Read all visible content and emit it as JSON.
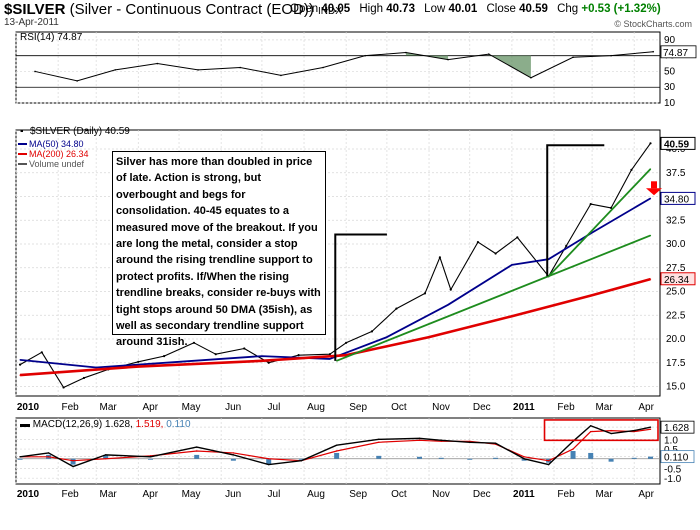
{
  "header": {
    "symbol": "$SILVER",
    "description": "(Silver - Continuous Contract (EOD))",
    "exchange": "INDX",
    "date": "13-Apr-2011",
    "brand": "© StockCharts.com",
    "open_label": "Open",
    "open": "40.05",
    "high_label": "High",
    "high": "40.73",
    "low_label": "Low",
    "low": "40.01",
    "close_label": "Close",
    "close": "40.59",
    "chg_label": "Chg",
    "chg": "+0.53 (+1.32%)"
  },
  "colors": {
    "price": "#000000",
    "ma50": "#00008b",
    "ma200": "#e00000",
    "trend": "#1e8c1e",
    "annotation_box": "#000000",
    "arrow": "#ff0000",
    "macd": "#000000",
    "signal": "#e00000",
    "histogram": "#4682b4",
    "rsi_fill": "#5a8a5a",
    "grid": "#d8d8d8"
  },
  "chart_data": [
    {
      "type": "line",
      "panel": "rsi",
      "legend": "RSI(14) 74.87",
      "last_value": "74.87",
      "ylim": [
        10,
        100
      ],
      "ticks": [
        "90",
        "70",
        "50",
        "30",
        "10"
      ],
      "overbought": 70,
      "oversold": 30,
      "x": [
        "2010-01",
        "2010-02",
        "2010-03",
        "2010-04",
        "2010-05",
        "2010-06",
        "2010-07",
        "2010-08",
        "2010-09",
        "2010-10",
        "2010-11",
        "2010-12",
        "2011-01",
        "2011-02",
        "2011-03",
        "2011-04"
      ],
      "values": [
        50,
        38,
        52,
        60,
        52,
        55,
        45,
        55,
        70,
        74,
        65,
        72,
        42,
        68,
        70,
        75
      ]
    },
    {
      "type": "line",
      "panel": "price",
      "legend_title": "$SILVER (Daily) 40.59",
      "legend": [
        {
          "label": "MA(50) 34.80",
          "color": "#00008b"
        },
        {
          "label": "MA(200) 26.34",
          "color": "#e00000"
        },
        {
          "label": "Volume undef",
          "color": "#555555"
        }
      ],
      "ylim": [
        14,
        42
      ],
      "ticks": [
        "40.0",
        "37.5",
        "35.0",
        "32.5",
        "30.0",
        "27.5",
        "25.0",
        "22.5",
        "20.0",
        "17.5",
        "15.0"
      ],
      "value_tags": [
        "40.59",
        "34.80",
        "26.34"
      ],
      "x_labels": [
        "2010",
        "Feb",
        "Mar",
        "Apr",
        "May",
        "Jun",
        "Jul",
        "Aug",
        "Sep",
        "Oct",
        "Nov",
        "Dec",
        "2011",
        "Feb",
        "Mar",
        "Apr"
      ],
      "series": [
        {
          "name": "$SILVER",
          "x": [
            "2010-01-04",
            "2010-01-20",
            "2010-02-05",
            "2010-02-20",
            "2010-03-10",
            "2010-04-01",
            "2010-04-20",
            "2010-05-12",
            "2010-05-28",
            "2010-06-18",
            "2010-07-06",
            "2010-07-28",
            "2010-08-20",
            "2010-09-01",
            "2010-09-20",
            "2010-10-08",
            "2010-10-29",
            "2010-11-09",
            "2010-11-17",
            "2010-12-07",
            "2010-12-20",
            "2011-01-05",
            "2011-01-28",
            "2011-02-10",
            "2011-02-28",
            "2011-03-15",
            "2011-03-30",
            "2011-04-13"
          ],
          "values": [
            17.3,
            18.6,
            14.9,
            15.9,
            16.8,
            17.6,
            18.2,
            19.6,
            18.4,
            19.0,
            17.5,
            18.3,
            18.4,
            19.6,
            20.8,
            23.2,
            24.8,
            28.6,
            25.2,
            30.2,
            29.0,
            30.7,
            26.6,
            29.8,
            34.2,
            33.8,
            37.8,
            40.6
          ]
        },
        {
          "name": "MA(50)",
          "x": [
            "2010-01-04",
            "2010-03-01",
            "2010-05-01",
            "2010-07-01",
            "2010-08-20",
            "2010-10-01",
            "2010-11-15",
            "2011-01-01",
            "2011-01-28",
            "2011-03-01",
            "2011-04-13"
          ],
          "values": [
            17.8,
            17.0,
            17.6,
            18.2,
            17.9,
            20.2,
            23.6,
            27.8,
            28.4,
            31.2,
            34.8
          ]
        },
        {
          "name": "MA(200)",
          "x": [
            "2010-01-04",
            "2010-04-01",
            "2010-07-01",
            "2010-09-01",
            "2010-11-01",
            "2011-01-01",
            "2011-03-01",
            "2011-04-13"
          ],
          "values": [
            16.2,
            17.1,
            17.7,
            18.3,
            20.2,
            22.4,
            24.6,
            26.3
          ]
        },
        {
          "name": "Trendline 1",
          "x": [
            "2010-08-25",
            "2011-04-13"
          ],
          "values": [
            17.7,
            30.9
          ]
        },
        {
          "name": "Trendline 2",
          "x": [
            "2011-01-28",
            "2011-04-13"
          ],
          "values": [
            26.6,
            37.9
          ]
        }
      ],
      "annotations": [
        {
          "text": "Silver has more than doubled in price of late.  Action is strong, but overbought and begs for consolidation.  40-45 equates to a measured move of the breakout.  If you are long the metal, consider a stop around the rising trendline support to protect profits.  If/When the rising trendline breaks, consider re-buys with tight stops around 50 DMA (35ish), as well as secondary trendline support around 31ish."
        }
      ]
    },
    {
      "type": "line",
      "panel": "macd",
      "legend_title": "MACD(12,26,9)",
      "legend_values": [
        "1.628",
        "1.519",
        "0.110"
      ],
      "ylim": [
        -1.3,
        2.1
      ],
      "ticks": [
        "1.628",
        "1.0",
        "0.5",
        "0.110",
        "-0.5",
        "-1.0"
      ],
      "x_labels": [
        "2010",
        "Feb",
        "Mar",
        "Apr",
        "May",
        "Jun",
        "Jul",
        "Aug",
        "Sep",
        "Oct",
        "Nov",
        "Dec",
        "2011",
        "Feb",
        "Mar",
        "Apr"
      ],
      "x": [
        "2010-01-04",
        "2010-01-25",
        "2010-02-12",
        "2010-03-08",
        "2010-04-10",
        "2010-05-14",
        "2010-06-10",
        "2010-07-06",
        "2010-07-30",
        "2010-08-25",
        "2010-09-25",
        "2010-10-25",
        "2010-11-10",
        "2010-12-01",
        "2010-12-20",
        "2011-01-10",
        "2011-01-28",
        "2011-02-15",
        "2011-02-28",
        "2011-03-15",
        "2011-04-01",
        "2011-04-13"
      ],
      "series": [
        {
          "name": "MACD",
          "values": [
            0.1,
            0.3,
            -0.4,
            0.2,
            0.1,
            0.6,
            0.2,
            -0.3,
            -0.1,
            0.7,
            1.0,
            1.05,
            0.95,
            0.85,
            0.8,
            0.0,
            -0.3,
            0.9,
            1.7,
            1.3,
            1.45,
            1.628
          ]
        },
        {
          "name": "Signal",
          "values": [
            0.1,
            0.1,
            -0.1,
            0.0,
            0.15,
            0.4,
            0.3,
            0.0,
            -0.1,
            0.4,
            0.85,
            0.95,
            0.9,
            0.9,
            0.75,
            0.1,
            -0.1,
            0.5,
            1.4,
            1.45,
            1.4,
            1.519
          ]
        },
        {
          "name": "Histogram",
          "values": [
            0.0,
            0.2,
            -0.3,
            0.2,
            -0.05,
            0.2,
            -0.1,
            -0.3,
            0.0,
            0.3,
            0.15,
            0.1,
            0.05,
            -0.05,
            0.05,
            -0.1,
            -0.2,
            0.4,
            0.3,
            -0.15,
            0.05,
            0.11
          ]
        }
      ]
    }
  ]
}
